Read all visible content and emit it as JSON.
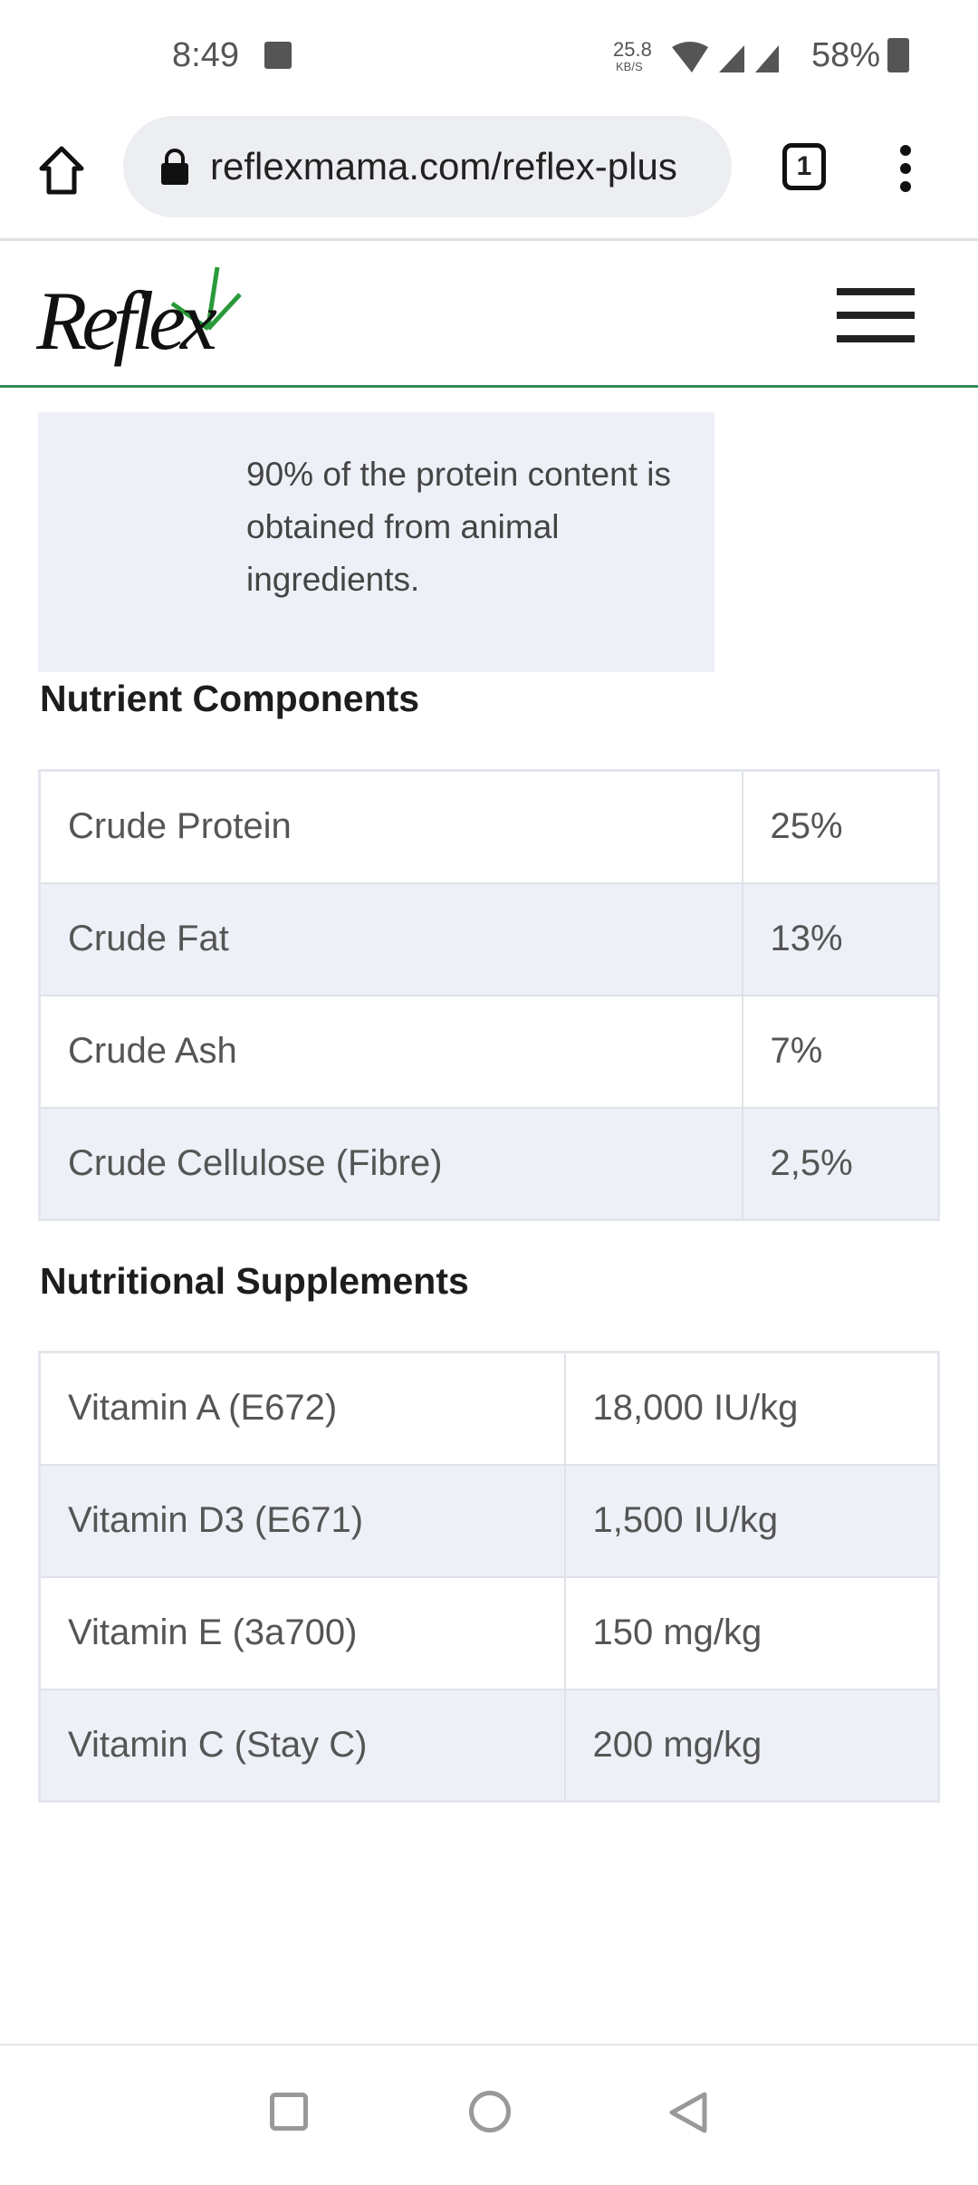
{
  "status_bar": {
    "time": "8:49",
    "net_speed": "25.8",
    "net_unit": "KB/S",
    "battery": "58%"
  },
  "browser": {
    "url": "reflexmama.com/reflex-plus",
    "tab_count": "1"
  },
  "site": {
    "logo_text": "Reflex",
    "accent_color": "#2e8b57"
  },
  "intro": {
    "text": "90% of the protein content is obtained from animal ingredients."
  },
  "nutrients": {
    "heading": "Nutrient Components",
    "rows": [
      {
        "name": "Crude Protein",
        "value": "25%"
      },
      {
        "name": "Crude Fat",
        "value": "13%"
      },
      {
        "name": "Crude Ash",
        "value": "7%"
      },
      {
        "name": "Crude Cellulose (Fibre)",
        "value": "2,5%"
      }
    ]
  },
  "supplements": {
    "heading": "Nutritional Supplements",
    "rows": [
      {
        "name": "Vitamin A (E672)",
        "value": "18,000 IU/kg"
      },
      {
        "name": "Vitamin D3 (E671)",
        "value": "1,500 IU/kg"
      },
      {
        "name": "Vitamin E (3a700)",
        "value": "150 mg/kg"
      },
      {
        "name": "Vitamin C (Stay C)",
        "value": "200 mg/kg"
      }
    ]
  }
}
